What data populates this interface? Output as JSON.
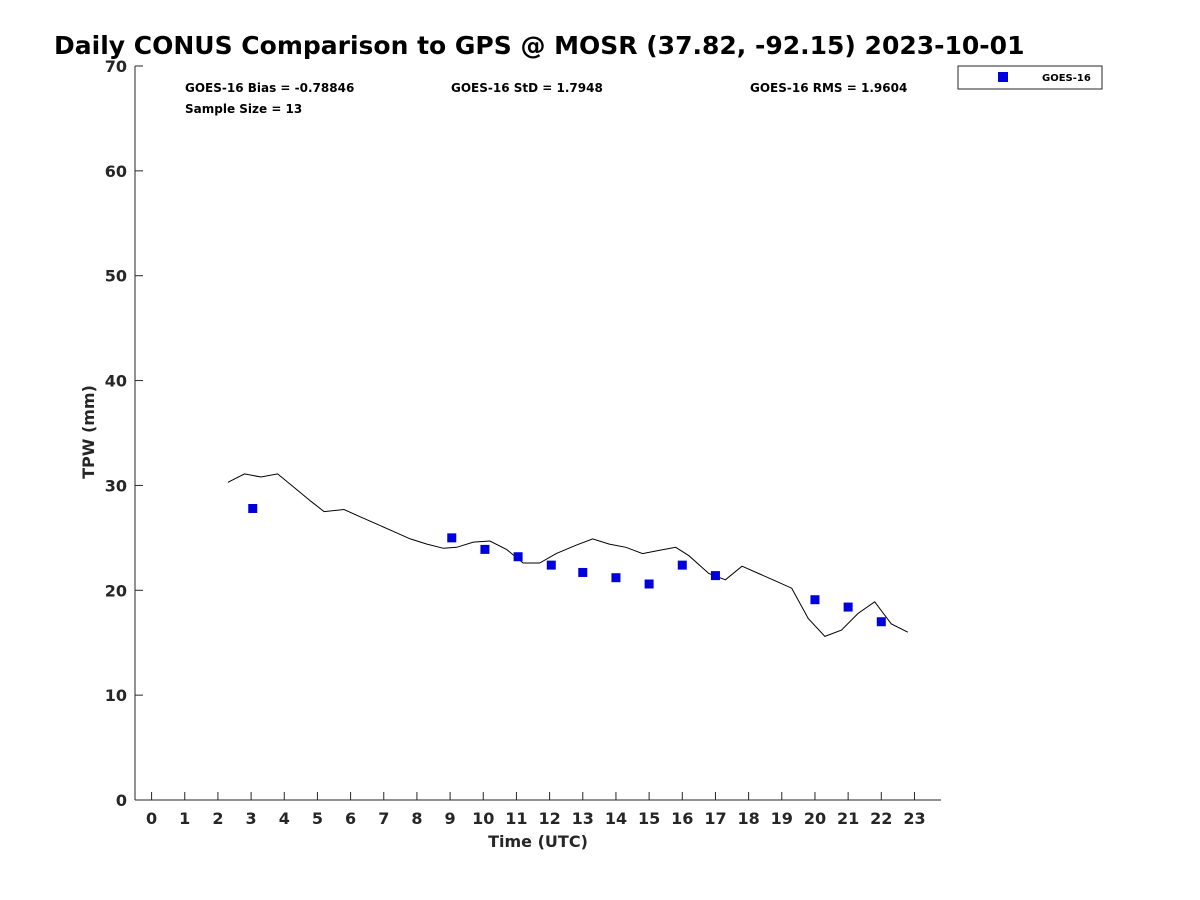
{
  "chart_data": {
    "type": "scatter",
    "title": "Daily CONUS Comparison to GPS @ MOSR (37.82, -92.15) 2023-10-01",
    "xlabel": "Time (UTC)",
    "ylabel": "TPW (mm)",
    "xlim": [
      -0.5,
      23.8
    ],
    "ylim": [
      0,
      70
    ],
    "x_ticks": [
      0,
      1,
      2,
      3,
      4,
      5,
      6,
      7,
      8,
      9,
      10,
      11,
      12,
      13,
      14,
      15,
      16,
      17,
      18,
      19,
      20,
      21,
      22,
      23
    ],
    "y_ticks": [
      0,
      10,
      20,
      30,
      40,
      50,
      60,
      70
    ],
    "stats": {
      "bias": "GOES-16 Bias = -0.78846",
      "std": "GOES-16 StD = 1.7948",
      "rms": "GOES-16 RMS = 1.9604",
      "sample_size": "Sample Size = 13"
    },
    "legend": {
      "placement": "top-right-outside",
      "entries": [
        "GOES-16"
      ]
    },
    "series": [
      {
        "name": "GOES-16",
        "kind": "scatter",
        "marker": "square",
        "color": "#0000dd",
        "x": [
          3.05,
          9.05,
          10.05,
          11.05,
          12.05,
          13.0,
          14.0,
          15.0,
          16.0,
          17.0,
          20.0,
          21.0,
          22.0
        ],
        "y": [
          27.8,
          25.0,
          23.9,
          23.2,
          22.4,
          21.7,
          21.2,
          20.6,
          22.4,
          21.4,
          19.1,
          18.4,
          17.0
        ]
      },
      {
        "kind": "line",
        "color": "#000000",
        "x": [
          2.3,
          2.8,
          3.3,
          3.8,
          4.3,
          4.8,
          5.2,
          5.8,
          6.3,
          6.8,
          7.3,
          7.8,
          8.3,
          8.8,
          9.2,
          9.7,
          10.2,
          10.7,
          11.2,
          11.7,
          12.2,
          12.8,
          13.3,
          13.8,
          14.3,
          14.8,
          15.3,
          15.8,
          16.2,
          16.8,
          17.3,
          17.8,
          18.3,
          18.8,
          19.3,
          19.8,
          20.3,
          20.8,
          21.3,
          21.8,
          22.3,
          22.8
        ],
        "y": [
          30.3,
          31.1,
          30.8,
          31.1,
          29.8,
          28.5,
          27.5,
          27.7,
          27.0,
          26.3,
          25.6,
          24.9,
          24.4,
          24.0,
          24.1,
          24.6,
          24.7,
          23.9,
          22.6,
          22.6,
          23.5,
          24.3,
          24.9,
          24.4,
          24.1,
          23.5,
          23.8,
          24.1,
          23.3,
          21.6,
          21.0,
          22.3,
          21.6,
          20.9,
          20.2,
          17.3,
          15.6,
          16.2,
          17.8,
          18.9,
          16.8,
          16.0
        ]
      }
    ]
  }
}
